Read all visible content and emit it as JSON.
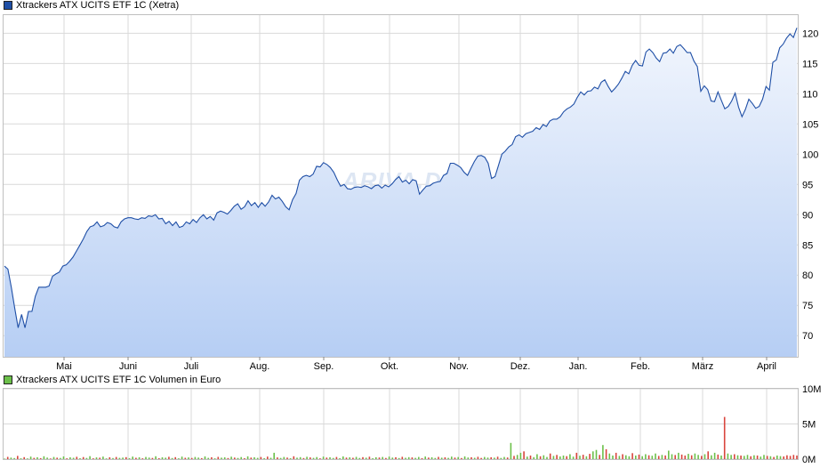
{
  "colors": {
    "price_line": "#1f4fa6",
    "area_top": "#f2f6fd",
    "area_bottom": "#b6cef4",
    "grid": "#d9d9d9",
    "vol_up": "#6cc04a",
    "vol_down": "#d9453d"
  },
  "watermark": "ARIVA.DE",
  "chart_data": [
    {
      "type": "area",
      "title": "Xtrackers ATX UCITS ETF 1C (Xetra)",
      "legend_color": "#1f4fa6",
      "x_ticks": [
        "Mai",
        "Juni",
        "Juli",
        "Aug.",
        "Sep.",
        "Okt.",
        "Nov.",
        "Dez.",
        "Jan.",
        "Feb.",
        "März",
        "April"
      ],
      "y_ticks": [
        70,
        75,
        80,
        85,
        90,
        95,
        100,
        105,
        110,
        115,
        120
      ],
      "ylim": [
        66.5,
        123
      ],
      "grid": true,
      "series": [
        {
          "values": [
            81.5,
            81,
            78,
            74.5,
            71.3,
            73.5,
            71.3,
            74,
            74,
            76.5,
            78,
            78,
            78,
            78.2,
            79.8,
            80.2,
            80.5,
            81.5,
            81.7,
            82.3,
            83,
            84,
            85,
            86,
            87.2,
            88,
            88.2,
            88.8,
            88,
            88.2,
            88.7,
            88.5,
            88,
            87.8,
            88.8,
            89.3,
            89.5,
            89.5,
            89.3,
            89.2,
            89.5,
            89.4,
            89.8,
            89.7,
            90,
            89.3,
            89.4,
            88.5,
            88.9,
            88.2,
            88.8,
            87.9,
            88.1,
            88.8,
            88.5,
            89.2,
            88.7,
            89.5,
            90,
            89.3,
            89.7,
            89.1,
            90.3,
            90.6,
            90.4,
            90.1,
            90.7,
            91.4,
            91.8,
            90.9,
            91.3,
            92.3,
            91.5,
            92,
            91.2,
            92,
            91.4,
            92.1,
            93.2,
            92.6,
            92.9,
            92.2,
            91.3,
            90.8,
            92.5,
            93.5,
            95.7,
            96.3,
            96.5,
            96.3,
            96.7,
            98,
            97.9,
            98.6,
            98.3,
            97.8,
            97,
            95.8,
            94.7,
            95,
            94.3,
            94.2,
            94.5,
            94.6,
            94.5,
            94.8,
            94.6,
            94.3,
            94.8,
            94.9,
            94.4,
            94.9,
            94.6,
            95.1,
            95.8,
            96.3,
            95.4,
            95.7,
            95.1,
            95.8,
            95.6,
            93.4,
            94.1,
            94.7,
            94.8,
            95.2,
            95.4,
            95.5,
            96.5,
            96.8,
            98.5,
            98.5,
            98.2,
            97.8,
            97,
            96.5,
            97.7,
            98.8,
            99.7,
            99.8,
            99.5,
            98.5,
            96,
            96.3,
            98.1,
            100,
            100.5,
            101.2,
            101.6,
            102.9,
            103.2,
            102.8,
            103.4,
            103.6,
            103.8,
            104.4,
            104.1,
            104.9,
            104.6,
            105.5,
            105.8,
            105.8,
            106.2,
            107,
            107.5,
            107.8,
            108.3,
            109.4,
            110.3,
            109.8,
            110.4,
            110.5,
            111.1,
            110.8,
            111.9,
            112.3,
            111.2,
            110.3,
            110.9,
            111.6,
            112.6,
            113.7,
            113.3,
            114.7,
            115.5,
            114.7,
            114.6,
            116.9,
            117.4,
            116.8,
            115.9,
            115.3,
            116.7,
            116.8,
            117.4,
            116.7,
            117.8,
            118.1,
            117.5,
            116.8,
            116.8,
            115.4,
            114.5,
            110.4,
            111.3,
            110.7,
            108.8,
            108.7,
            110.3,
            108.9,
            107.5,
            107.9,
            108.8,
            110.1,
            107.8,
            106.2,
            107.4,
            109.1,
            108.4,
            107.6,
            107.9,
            109.1,
            111.2,
            110.6,
            115.2,
            115.6,
            117.6,
            118.2,
            119.2,
            119.9,
            119.3,
            120.9
          ]
        }
      ]
    },
    {
      "type": "bar",
      "title": "Xtrackers ATX UCITS ETF 1C Volumen in Euro",
      "legend_color": "#6cc04a",
      "y_ticks": [
        "0M",
        "5M",
        "10M"
      ],
      "ylim": [
        0,
        10
      ],
      "grid": true,
      "series": [
        {
          "values": [
            0.08,
            0.32,
            0.22,
            0.15,
            0.45,
            0.12,
            0.28,
            0.1,
            0.35,
            0.18,
            0.26,
            0.14,
            0.4,
            0.22,
            0.09,
            0.3,
            0.2,
            0.16,
            0.38,
            0.11,
            0.25,
            0.19,
            0.33,
            0.13,
            0.29,
            0.17,
            0.42,
            0.12,
            0.24,
            0.2,
            0.36,
            0.1,
            0.27,
            0.15,
            0.31,
            0.18,
            0.22,
            0.28,
            0.14,
            0.35,
            0.19,
            0.26,
            0.12,
            0.3,
            0.21,
            0.17,
            0.4,
            0.13,
            0.25,
            0.2,
            0.33,
            0.15,
            0.28,
            0.11,
            0.36,
            0.19,
            0.24,
            0.16,
            0.3,
            0.22,
            0.14,
            0.38,
            0.18,
            0.27,
            0.12,
            0.32,
            0.2,
            0.25,
            0.15,
            0.34,
            0.21,
            0.17,
            0.29,
            0.13,
            0.39,
            0.22,
            0.26,
            0.18,
            0.31,
            0.14,
            0.35,
            0.19,
            0.9,
            0.24,
            0.16,
            0.3,
            0.22,
            0.13,
            0.4,
            0.2,
            0.28,
            0.15,
            0.33,
            0.24,
            0.18,
            0.29,
            0.12,
            0.36,
            0.21,
            0.26,
            0.17,
            0.31,
            0.14,
            0.38,
            0.22,
            0.25,
            0.19,
            0.32,
            0.16,
            0.28,
            0.2,
            0.34,
            0.13,
            0.27,
            0.23,
            0.3,
            0.17,
            0.36,
            0.21,
            0.26,
            0.15,
            0.33,
            0.19,
            0.28,
            0.24,
            0.18,
            0.31,
            0.14,
            0.37,
            0.22,
            0.27,
            0.16,
            0.32,
            0.2,
            0.25,
            0.18,
            0.35,
            0.21,
            0.29,
            0.15,
            0.38,
            0.23,
            0.27,
            0.19,
            0.33,
            0.17,
            0.31,
            0.22,
            0.26,
            0.2,
            0.34,
            0.16,
            0.3,
            0.23,
            2.3,
            0.45,
            0.6,
            0.9,
            1.1,
            0.35,
            0.5,
            0.28,
            0.7,
            0.4,
            0.55,
            0.3,
            0.8,
            0.45,
            0.6,
            0.38,
            0.5,
            0.42,
            0.7,
            0.35,
            0.9,
            0.48,
            0.62,
            0.4,
            0.75,
            1.1,
            1.3,
            0.6,
            2.0,
            1.4,
            0.8,
            0.5,
            0.9,
            0.45,
            0.7,
            0.55,
            0.4,
            0.85,
            0.5,
            0.65,
            0.42,
            0.7,
            0.55,
            0.48,
            0.8,
            0.45,
            0.6,
            0.52,
            1.2,
            0.7,
            0.58,
            0.9,
            0.65,
            0.5,
            0.75,
            0.55,
            0.8,
            0.6,
            0.45,
            0.7,
            1.1,
            0.55,
            0.9,
            0.65,
            0.5,
            6.0,
            0.8,
            0.6,
            0.7,
            0.55,
            0.5,
            0.45,
            0.6,
            0.4,
            0.55,
            0.5,
            0.35,
            0.6,
            0.45,
            0.4,
            0.3,
            0.5,
            0.42,
            0.38,
            0.55,
            0.45,
            0.6,
            0.5
          ],
          "up": [
            1,
            0,
            1,
            1,
            0,
            1,
            0,
            1,
            1,
            0,
            1,
            0,
            1,
            1,
            0,
            1,
            0,
            1,
            1,
            0,
            1,
            1,
            0,
            1,
            0,
            1,
            1,
            0,
            1,
            0,
            1,
            1,
            0,
            1,
            0,
            1,
            1,
            0,
            1,
            1,
            0,
            1,
            0,
            1,
            1,
            0,
            1,
            0,
            1,
            1,
            0,
            1,
            0,
            1,
            1,
            0,
            1,
            0,
            1,
            1,
            0,
            1,
            1,
            0,
            1,
            0,
            1,
            1,
            0,
            1,
            0,
            1,
            1,
            0,
            1,
            0,
            1,
            1,
            0,
            1,
            0,
            1,
            1,
            0,
            1,
            1,
            0,
            1,
            0,
            1,
            1,
            0,
            1,
            0,
            1,
            1,
            0,
            1,
            0,
            1,
            1,
            0,
            1,
            1,
            0,
            1,
            0,
            1,
            1,
            0,
            1,
            0,
            1,
            1,
            0,
            1,
            0,
            1,
            1,
            0,
            1,
            0,
            1,
            1,
            0,
            1,
            1,
            0,
            1,
            0,
            1,
            1,
            0,
            1,
            0,
            1,
            1,
            0,
            1,
            0,
            1,
            1,
            0,
            1,
            0,
            0,
            1,
            1,
            0,
            1,
            0,
            1,
            1,
            0,
            1,
            0,
            1,
            1,
            0,
            1,
            0,
            1,
            1,
            0,
            1,
            1,
            0,
            1,
            0,
            1,
            1,
            0,
            1,
            1,
            0,
            1,
            0,
            1,
            0,
            1,
            1,
            0,
            1,
            0,
            1,
            1,
            0,
            1,
            0,
            1,
            1,
            0,
            1,
            0,
            1,
            1,
            0,
            1,
            1,
            0,
            1,
            0,
            1,
            1,
            0,
            1,
            0,
            0,
            1,
            0,
            1,
            1,
            0,
            1,
            0,
            1,
            1,
            0,
            1,
            0,
            1,
            1,
            0,
            1,
            0,
            1,
            1,
            0,
            1,
            0,
            1,
            1,
            0,
            1,
            0,
            1,
            1
          ]
        }
      ]
    }
  ]
}
